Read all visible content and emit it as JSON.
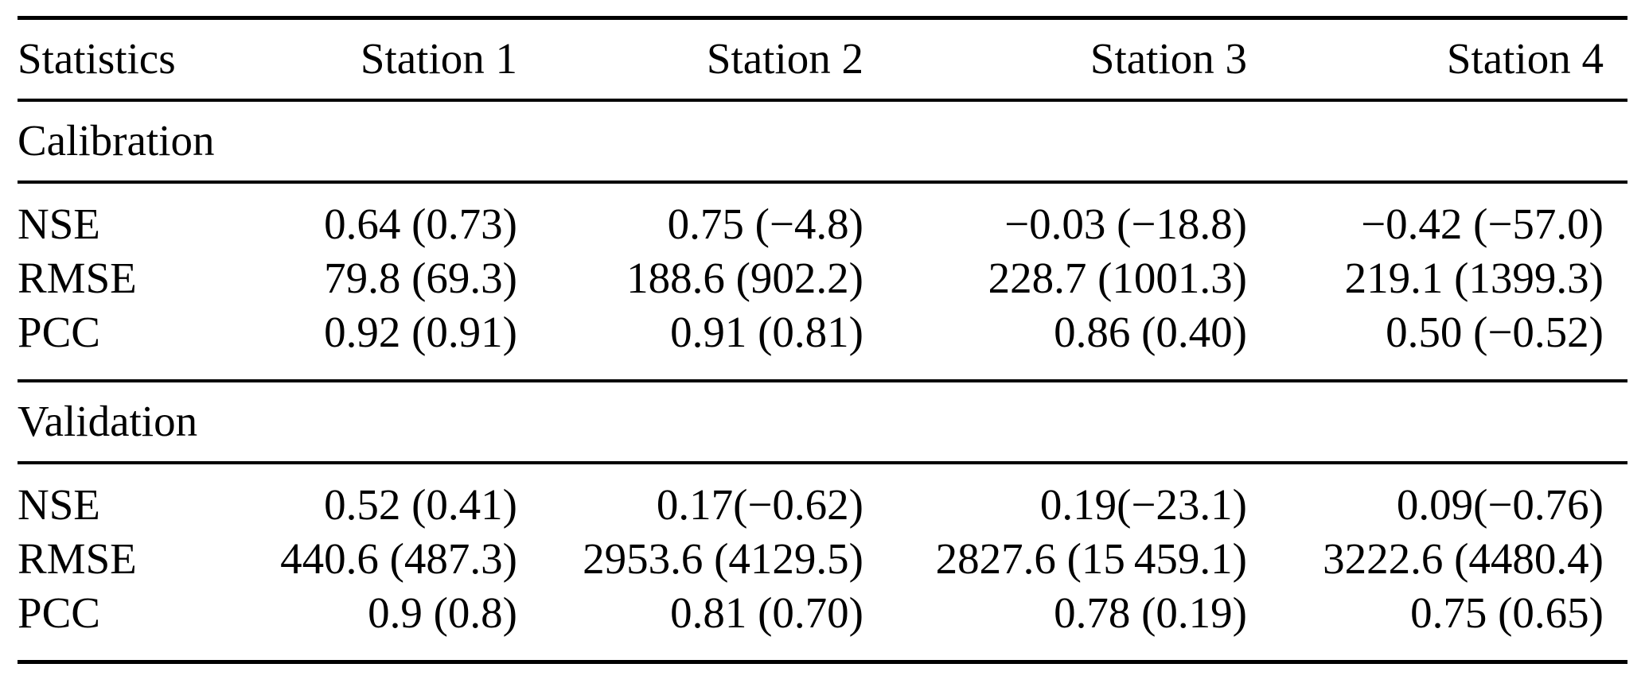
{
  "table": {
    "header": {
      "statistics_label": "Statistics",
      "stations": [
        "Station 1",
        "Station 2",
        "Station 3",
        "Station 4"
      ]
    },
    "sections": [
      {
        "label": "Calibration",
        "rows": [
          {
            "metric": "NSE",
            "values": [
              "0.64 (0.73)",
              "0.75 (−4.8)",
              "−0.03 (−18.8)",
              "−0.42 (−57.0)"
            ],
            "bold": [
              false,
              true,
              true,
              true
            ]
          },
          {
            "metric": "RMSE",
            "values": [
              "79.8 (69.3)",
              "188.6 (902.2)",
              "228.7 (1001.3)",
              "219.1 (1399.3)"
            ],
            "bold": [
              false,
              true,
              true,
              true
            ]
          },
          {
            "metric": "PCC",
            "values": [
              "0.92 (0.91)",
              "0.91 (0.81)",
              "0.86 (0.40)",
              "0.50 (−0.52)"
            ],
            "bold": [
              true,
              true,
              true,
              true
            ]
          }
        ]
      },
      {
        "label": "Validation",
        "rows": [
          {
            "metric": "NSE",
            "values": [
              "0.52 (0.41)",
              "0.17(−0.62)",
              "0.19(−23.1)",
              "0.09(−0.76)"
            ],
            "bold": [
              true,
              true,
              true,
              true
            ]
          },
          {
            "metric": "RMSE",
            "values": [
              "440.6 (487.3)",
              "2953.6 (4129.5)",
              "2827.6 (15 459.1)",
              "3222.6 (4480.4)"
            ],
            "bold": [
              true,
              true,
              true,
              true
            ]
          },
          {
            "metric": "PCC",
            "values": [
              "0.9 (0.8)",
              "0.81 (0.70)",
              "0.78 (0.19)",
              "0.75 (0.65)"
            ],
            "bold": [
              true,
              true,
              true,
              true
            ]
          }
        ]
      }
    ]
  }
}
